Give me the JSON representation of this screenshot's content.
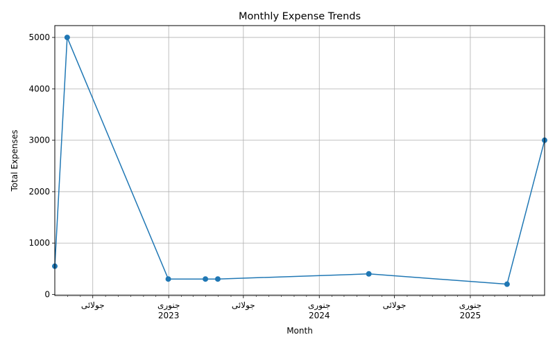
{
  "chart_data": {
    "type": "line",
    "title": "Monthly Expense Trends",
    "xlabel": "Month",
    "ylabel": "Total Expenses",
    "grid": true,
    "x_axis": "date",
    "xlim": [
      "2022-03-31",
      "2025-06-30"
    ],
    "ylim": [
      -20,
      5230
    ],
    "y_ticks": [
      0,
      1000,
      2000,
      3000,
      4000,
      5000
    ],
    "x_major_ticks": [
      {
        "date": "2022-07-01",
        "label": "جولائی",
        "year": ""
      },
      {
        "date": "2023-01-01",
        "label": "جنوری",
        "year": "2023"
      },
      {
        "date": "2023-07-01",
        "label": "جولائی",
        "year": ""
      },
      {
        "date": "2024-01-01",
        "label": "جنوری",
        "year": "2024"
      },
      {
        "date": "2024-07-01",
        "label": "جولائی",
        "year": ""
      },
      {
        "date": "2025-01-01",
        "label": "جنوری",
        "year": "2025"
      }
    ],
    "x_minor_ticks": [
      "2022-05-01",
      "2022-06-01",
      "2022-08-01",
      "2022-09-01",
      "2022-10-01",
      "2022-11-01",
      "2022-12-01",
      "2023-02-01",
      "2023-03-01",
      "2023-04-01",
      "2023-05-01",
      "2023-06-01",
      "2023-08-01",
      "2023-09-01",
      "2023-10-01",
      "2023-11-01",
      "2023-12-01",
      "2024-02-01",
      "2024-03-01",
      "2024-04-01",
      "2024-05-01",
      "2024-06-01",
      "2024-08-01",
      "2024-09-01",
      "2024-10-01",
      "2024-11-01",
      "2024-12-01",
      "2025-02-01",
      "2025-03-01",
      "2025-04-01",
      "2025-05-01",
      "2025-06-01"
    ],
    "series": [
      {
        "color": "#1f77b4",
        "points": [
          {
            "x": "2022-03-31",
            "y": 550
          },
          {
            "x": "2022-04-30",
            "y": 5000
          },
          {
            "x": "2022-12-31",
            "y": 300
          },
          {
            "x": "2023-03-31",
            "y": 300
          },
          {
            "x": "2023-04-30",
            "y": 300
          },
          {
            "x": "2024-04-30",
            "y": 400
          },
          {
            "x": "2025-03-31",
            "y": 200
          },
          {
            "x": "2025-06-30",
            "y": 3000
          }
        ]
      }
    ]
  }
}
